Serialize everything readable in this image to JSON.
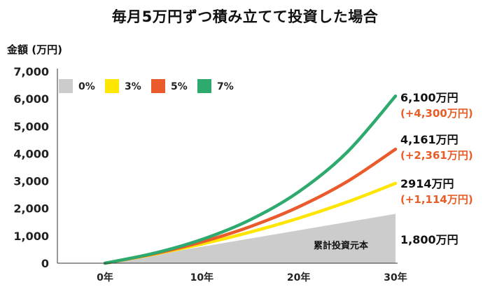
{
  "chart_data": {
    "type": "area",
    "title": "毎月5万円ずつ積み立てて投資した場合",
    "ylabel": "金額 (万円)",
    "xlabel": "",
    "ylim": [
      0,
      7000
    ],
    "y_ticks": [
      "0",
      "1,000",
      "2,000",
      "3,000",
      "4,000",
      "5,000",
      "6,000",
      "7,000"
    ],
    "x_ticks": [
      "0年",
      "10年",
      "20年",
      "30年"
    ],
    "x_tick_values": [
      0,
      10,
      20,
      30
    ],
    "grid": false,
    "legend_position": "top-left",
    "area_label": "累計投資元本",
    "series": [
      {
        "name": "0%",
        "color": "#cccccc",
        "kind": "area",
        "x": [
          0,
          5,
          10,
          15,
          20,
          25,
          30
        ],
        "values": [
          0,
          300,
          600,
          900,
          1200,
          1500,
          1800
        ],
        "end_label": "1,800万円",
        "end_sub": ""
      },
      {
        "name": "3%",
        "color": "#ffe600",
        "kind": "line",
        "x": [
          0,
          5,
          10,
          15,
          20,
          25,
          30
        ],
        "values": [
          0,
          323,
          699,
          1135,
          1642,
          2231,
          2914
        ],
        "end_label": "2914万円",
        "end_sub": "(+1,114万円)"
      },
      {
        "name": "5%",
        "color": "#ea5a2a",
        "kind": "line",
        "x": [
          0,
          5,
          10,
          15,
          20,
          25,
          30
        ],
        "values": [
          0,
          340,
          776,
          1336,
          2055,
          2977,
          4161
        ],
        "end_label": "4,161万円",
        "end_sub": "(+2,361万円)"
      },
      {
        "name": "7%",
        "color": "#2eaa6e",
        "kind": "line",
        "x": [
          0,
          5,
          10,
          15,
          20,
          25,
          30
        ],
        "values": [
          0,
          358,
          865,
          1584,
          2604,
          4050,
          6100
        ],
        "end_label": "6,100万円",
        "end_sub": "(+4,300万円)"
      }
    ]
  }
}
